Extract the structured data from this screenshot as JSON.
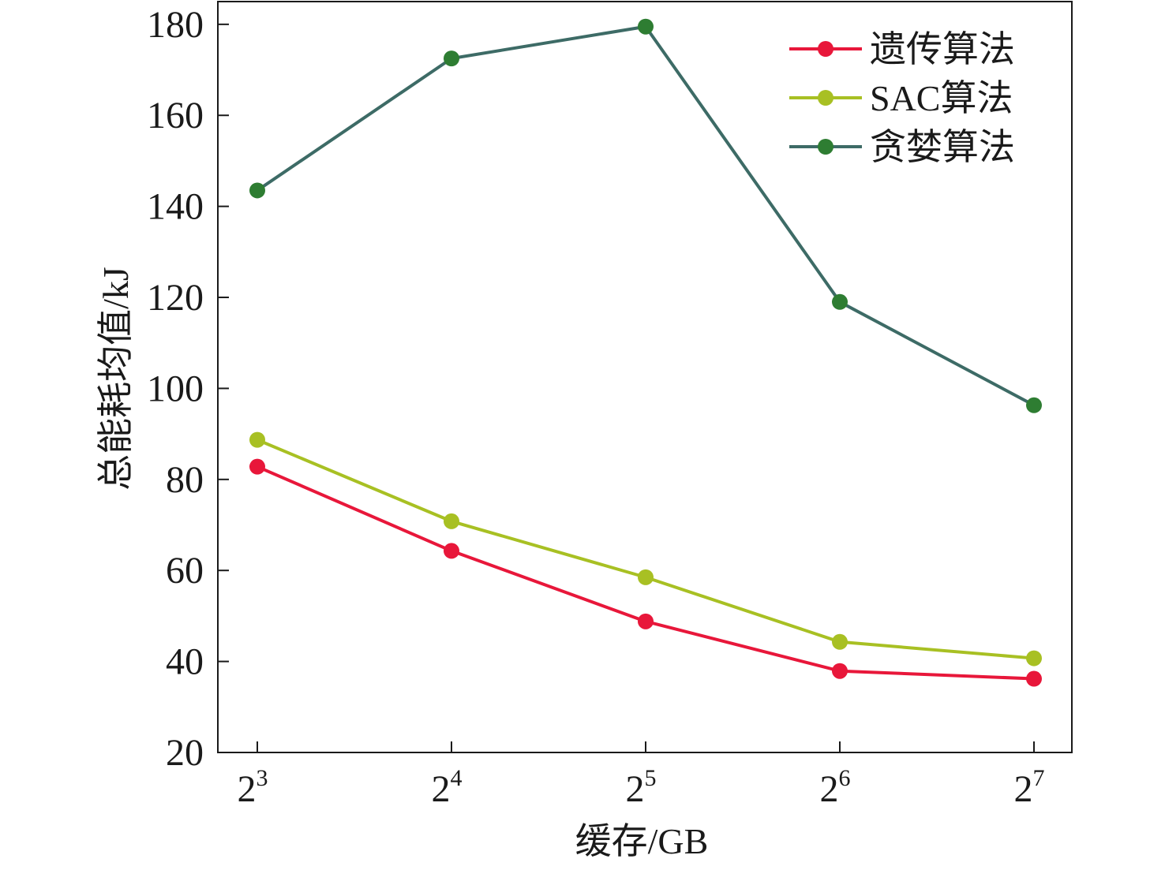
{
  "chart_data": {
    "type": "line",
    "title": "",
    "xlabel": "缓存/GB",
    "ylabel": "总能耗均值/kJ",
    "x_categories": [
      {
        "base": "2",
        "exp": "3"
      },
      {
        "base": "2",
        "exp": "4"
      },
      {
        "base": "2",
        "exp": "5"
      },
      {
        "base": "2",
        "exp": "6"
      },
      {
        "base": "2",
        "exp": "7"
      }
    ],
    "ylim": [
      20,
      185
    ],
    "yticks": [
      20,
      40,
      60,
      80,
      100,
      120,
      140,
      160,
      180
    ],
    "grid": false,
    "legend_position": "top-right",
    "series": [
      {
        "name": "遗传算法",
        "color": "#e8173a",
        "values": [
          82.8,
          64.3,
          48.8,
          37.9,
          36.2
        ]
      },
      {
        "name": "SAC算法",
        "color": "#a8c023",
        "values": [
          88.7,
          70.8,
          58.5,
          44.3,
          40.7
        ]
      },
      {
        "name": "贪婪算法",
        "color": "#2e7d32",
        "line_color": "#3d6b66",
        "values": [
          143.5,
          172.5,
          179.5,
          119.0,
          96.3
        ]
      }
    ]
  }
}
